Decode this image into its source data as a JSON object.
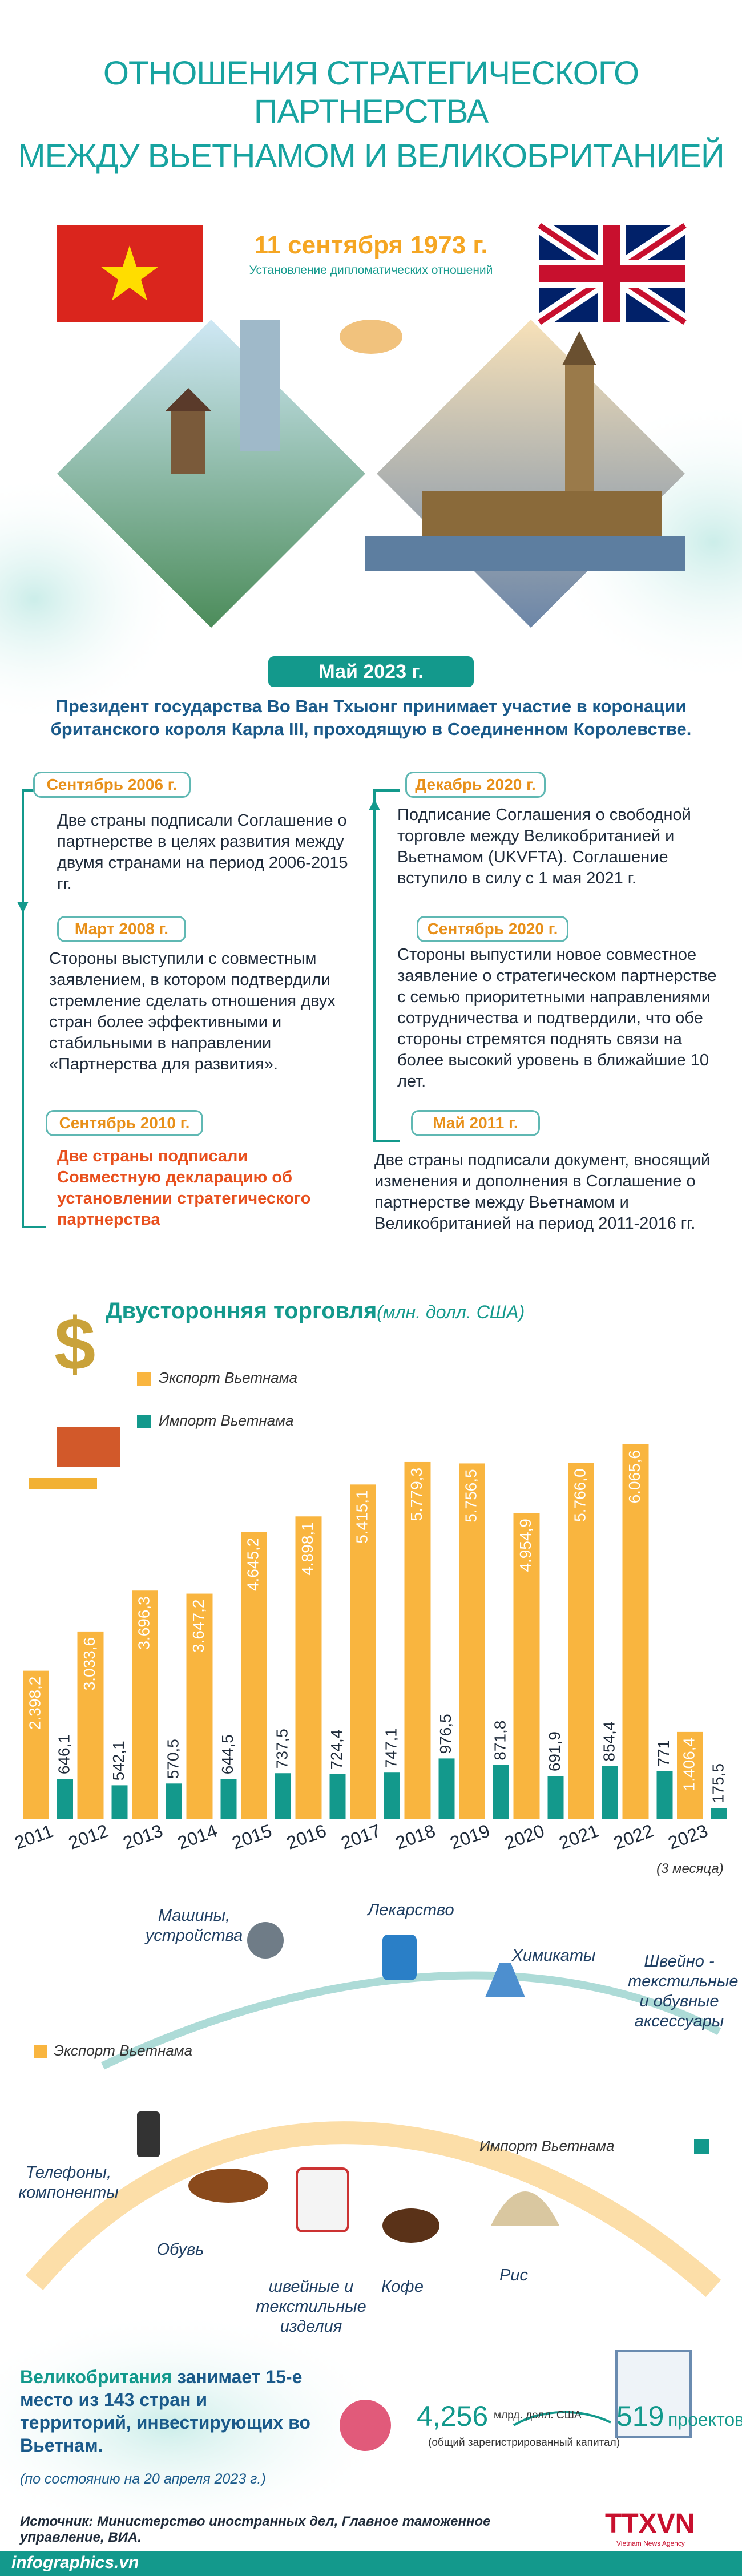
{
  "header": {
    "title_line1": "ОТНОШЕНИЯ СТРАТЕГИЧЕСКОГО ПАРТНЕРСТВА",
    "title_line2": "МЕЖДУ ВЬЕТНАМОМ И ВЕЛИКОБРИТАНИЕЙ"
  },
  "intro": {
    "date": "11 сентября 1973 г.",
    "subtitle": "Установление дипломатических отношений"
  },
  "may2023": {
    "date": "Май 2023 г.",
    "text": "Президент государства Во Ван Тхыонг принимает участие в коронации британского короля Карла III, проходящую в Соединенном Королевстве."
  },
  "timeline": {
    "left": [
      {
        "date": "Сентябрь 2006 г.",
        "text": "Две страны подписали Соглашение о партнерстве в целях развития между двумя странами на период 2006-2015 гг."
      },
      {
        "date": "Март 2008 г.",
        "text": "Стороны выступили с совместным заявлением, в котором подтвердили стремление сделать отношения двух стран более эффективными и стабильными в направлении «Партнерства для развития»."
      },
      {
        "date": "Сентябрь 2010 г.",
        "text": "Две страны подписали Совместную декларацию об установлении стратегического партнерства"
      }
    ],
    "right": [
      {
        "date": "Декабрь 2020 г.",
        "text": "Подписание Соглашения о свободной торговле между Великобританией и Вьетнамом (UKVFTA). Соглашение вступило в силу с 1 мая 2021 г."
      },
      {
        "date": "Сентябрь 2020 г.",
        "text": "Стороны выпустили новое совместное заявление о стратегическом партнерстве с семью приоритетными направлениями сотрудничества и подтвердили, что обе стороны стремятся поднять связи на более высокий уровень в ближайшие 10 лет."
      },
      {
        "date": "Май 2011 г.",
        "text": "Две страны подписали документ, вносящий изменения и дополнения в Соглашение о партнерстве между Вьетнамом и Великобританией на период 2011-2016 гг."
      }
    ]
  },
  "chart_data": {
    "type": "bar",
    "title": "Двусторонняя торговля",
    "unit": "(млн. долл. США)",
    "note": "(3 месяца)",
    "categories": [
      "2011",
      "2012",
      "2013",
      "2014",
      "2015",
      "2016",
      "2017",
      "2018",
      "2019",
      "2020",
      "2021",
      "2022",
      "2023"
    ],
    "series": [
      {
        "name": "Экспорт Вьетнама",
        "color": "#f9b53f",
        "values": [
          2398.2,
          3033.6,
          3696.3,
          3647.2,
          4645.2,
          4898.1,
          5415.1,
          5779.3,
          5756.5,
          4954.9,
          5766.0,
          6065.6,
          1406.4
        ],
        "value_labels": [
          "2.398,2",
          "3.033,6",
          "3.696,3",
          "3.647,2",
          "4.645,2",
          "4.898,1",
          "5.415,1",
          "5.779,3",
          "5.756,5",
          "4.954,9",
          "5.766,0",
          "6.065,6",
          "1.406,4"
        ]
      },
      {
        "name": "Импорт Вьетнама",
        "color": "#13998c",
        "values": [
          646.1,
          542.1,
          570.5,
          644.5,
          737.5,
          724.4,
          747.1,
          976.5,
          871.8,
          691.9,
          854.4,
          771,
          175.5
        ],
        "value_labels": [
          "646,1",
          "542,1",
          "570,5",
          "644,5",
          "737,5",
          "724,4",
          "747,1",
          "976,5",
          "871,8",
          "691,9",
          "854,4",
          "771",
          "175,5"
        ]
      }
    ]
  },
  "products": {
    "export_label": "Экспорт Вьетнама",
    "import_label": "Импорт Вьетнама",
    "import_items": [
      "Машины, устройства",
      "Лекарство",
      "Химикаты",
      "Швейно - текстильные и обувные аксессуары"
    ],
    "export_items": [
      "Телефоны, компоненты",
      "Обувь",
      "швейные и текстильные изделия",
      "Кофе",
      "Рис"
    ]
  },
  "investment": {
    "country": "Великобритания",
    "rank_text": "занимает 15-е место из 143 стран и территорий, инвестирующих во Вьетнам.",
    "as_of": "(по состоянию на 20 апреля 2023 г.)",
    "capital": "4,256",
    "capital_unit": "млрд. долл. США",
    "capital_note": "(общий зарегистрированный капитал)",
    "projects": "519",
    "projects_unit": "проектов"
  },
  "footer": {
    "source": "Источник: Министерство иностранных дел, Главное таможенное управление, ВИА.",
    "site": "infographics.vn",
    "logo": "TTXVN",
    "logo_sub": "Vietnam News Agency"
  }
}
